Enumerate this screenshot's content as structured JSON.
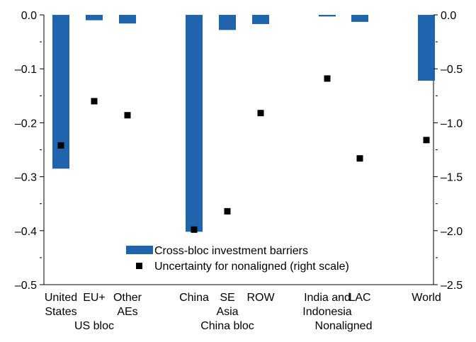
{
  "chart_data": {
    "type": "bar",
    "categories": [
      {
        "lines": [
          "United",
          "States"
        ]
      },
      {
        "lines": [
          "EU+"
        ]
      },
      {
        "lines": [
          "Other",
          "AEs"
        ]
      },
      {
        "lines": [
          "China"
        ]
      },
      {
        "lines": [
          "SE",
          "Asia"
        ]
      },
      {
        "lines": [
          "ROW"
        ]
      },
      {
        "lines": [
          "India and",
          "Indonesia"
        ]
      },
      {
        "lines": [
          "LAC"
        ]
      },
      {
        "lines": [
          "World"
        ]
      }
    ],
    "groups": [
      {
        "label": "US bloc",
        "members": [
          0,
          1,
          2
        ]
      },
      {
        "label": "China bloc",
        "members": [
          3,
          4,
          5
        ]
      },
      {
        "label": "Nonaligned",
        "members": [
          6,
          7
        ]
      }
    ],
    "series": [
      {
        "name": "Cross-bloc investment barriers",
        "type": "bar",
        "axis": "left",
        "color": "#1f64ad",
        "values": [
          -0.285,
          -0.01,
          -0.016,
          -0.402,
          -0.028,
          -0.017,
          -0.003,
          -0.013,
          -0.122
        ]
      },
      {
        "name": "Uncertainty for nonaligned (right scale)",
        "type": "scatter",
        "axis": "right",
        "color": "#000000",
        "marker": "square",
        "values": [
          -1.21,
          -0.8,
          -0.93,
          -1.99,
          -1.82,
          -0.91,
          -0.59,
          -1.33,
          -1.16
        ]
      }
    ],
    "y_left": {
      "ylim": [
        -0.5,
        0.0
      ],
      "ticks": [
        "0.0",
        "–0.1",
        "–0.2",
        "–0.3",
        "–0.4",
        "–0.5"
      ],
      "tick_values": [
        0.0,
        -0.1,
        -0.2,
        -0.3,
        -0.4,
        -0.5
      ],
      "minor_tick_values": [
        -0.05,
        -0.15,
        -0.25,
        -0.35,
        -0.45
      ]
    },
    "y_right": {
      "ylim": [
        -2.5,
        0.0
      ],
      "ticks": [
        "0.0",
        "–0.5",
        "–1.0",
        "–1.5",
        "–2.0",
        "–2.5"
      ],
      "tick_values": [
        0.0,
        -0.5,
        -1.0,
        -1.5,
        -2.0,
        -2.5
      ],
      "minor_tick_values": [
        -0.25,
        -0.75,
        -1.25,
        -1.75,
        -2.25
      ]
    },
    "grid": false,
    "legend_position": "bottom-center"
  }
}
